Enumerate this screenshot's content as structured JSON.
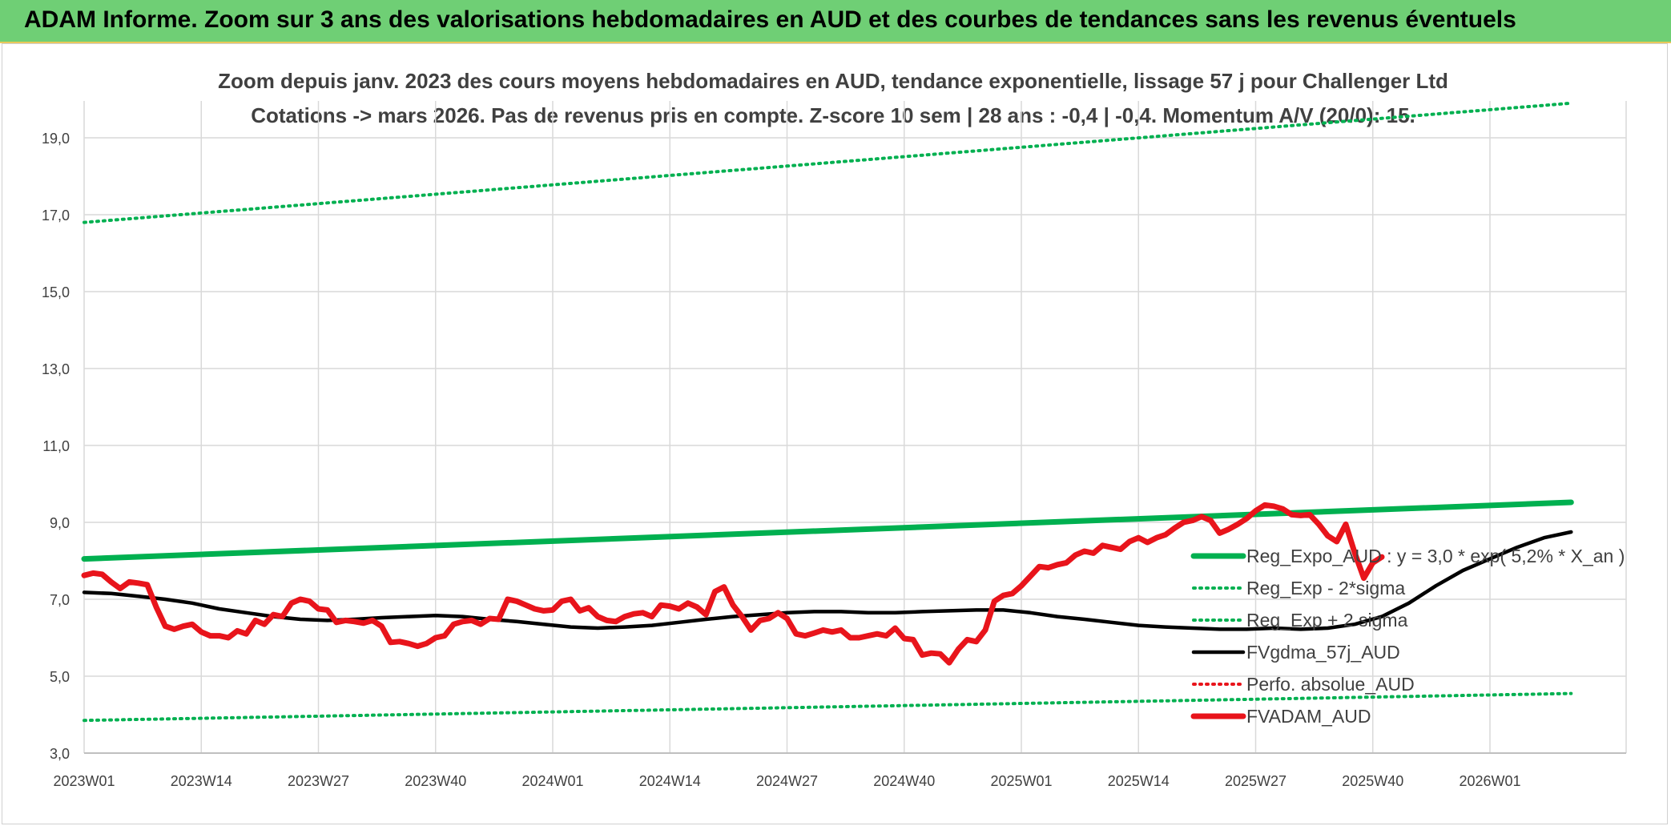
{
  "header": {
    "title": "ADAM Informe. Zoom sur 3 ans des valorisations hebdomadaires en AUD et des courbes de tendances sans les revenus éventuels"
  },
  "colors": {
    "header_bg": "#6fcf75",
    "reg_exp": "#00b050",
    "fvgdma": "#000000",
    "fvadam": "#e8141b",
    "perfo": "#e8141b",
    "grid": "#d9d9d9"
  },
  "chart_data": {
    "type": "line",
    "title": "Zoom depuis janv. 2023 des cours moyens hebdomadaires en AUD, tendance exponentielle, lissage 57 j pour Challenger Ltd",
    "subtitle": "Cotations -> mars 2026. Pas de revenus pris en compte. Z-score 10 sem | 28 ans : -0,4 | -0,4. Momentum A/V (20/0): 15.",
    "ylim": [
      3,
      20
    ],
    "yticks": [
      "3,0",
      "5,0",
      "7,0",
      "9,0",
      "11,0",
      "13,0",
      "15,0",
      "17,0",
      "19,0"
    ],
    "x_categories": [
      "2023W01",
      "2023W14",
      "2023W27",
      "2023W40",
      "2024W01",
      "2024W14",
      "2024W27",
      "2024W40",
      "2025W01",
      "2025W14",
      "2025W27",
      "2025W40",
      "2026W01"
    ],
    "legend_position": "bottom-right",
    "grid": true,
    "series": [
      {
        "name": "Reg_Expo_AUD : y = 3,0 * exp( 5,2% *  X_an )",
        "style": "solid-thick",
        "color": "#00b050",
        "values": [
          [
            0,
            8.05
          ],
          [
            165,
            9.52
          ]
        ]
      },
      {
        "name": "Reg_Exp - 2*sigma",
        "style": "dotted",
        "color": "#00b050",
        "values": [
          [
            0,
            3.85
          ],
          [
            165,
            4.55
          ]
        ]
      },
      {
        "name": "Reg_Exp + 2 sigma",
        "style": "dotted",
        "color": "#00b050",
        "values": [
          [
            0,
            16.8
          ],
          [
            165,
            19.9
          ]
        ]
      },
      {
        "name": "FVgdma_57j_AUD",
        "style": "solid",
        "color": "#000000",
        "values": [
          [
            0,
            7.18
          ],
          [
            3,
            7.15
          ],
          [
            6,
            7.08
          ],
          [
            9,
            7.0
          ],
          [
            12,
            6.9
          ],
          [
            15,
            6.75
          ],
          [
            18,
            6.65
          ],
          [
            21,
            6.55
          ],
          [
            24,
            6.48
          ],
          [
            27,
            6.45
          ],
          [
            30,
            6.48
          ],
          [
            33,
            6.52
          ],
          [
            36,
            6.55
          ],
          [
            39,
            6.58
          ],
          [
            42,
            6.55
          ],
          [
            45,
            6.48
          ],
          [
            48,
            6.42
          ],
          [
            51,
            6.35
          ],
          [
            54,
            6.28
          ],
          [
            57,
            6.25
          ],
          [
            60,
            6.28
          ],
          [
            63,
            6.32
          ],
          [
            66,
            6.4
          ],
          [
            69,
            6.48
          ],
          [
            72,
            6.55
          ],
          [
            75,
            6.6
          ],
          [
            78,
            6.65
          ],
          [
            81,
            6.68
          ],
          [
            84,
            6.68
          ],
          [
            87,
            6.65
          ],
          [
            90,
            6.65
          ],
          [
            93,
            6.68
          ],
          [
            96,
            6.7
          ],
          [
            99,
            6.72
          ],
          [
            102,
            6.72
          ],
          [
            105,
            6.65
          ],
          [
            108,
            6.55
          ],
          [
            111,
            6.48
          ],
          [
            114,
            6.4
          ],
          [
            117,
            6.32
          ],
          [
            120,
            6.28
          ],
          [
            123,
            6.25
          ],
          [
            126,
            6.22
          ],
          [
            129,
            6.22
          ],
          [
            132,
            6.25
          ],
          [
            135,
            6.22
          ],
          [
            138,
            6.25
          ],
          [
            141,
            6.35
          ],
          [
            144,
            6.55
          ],
          [
            147,
            6.9
          ],
          [
            150,
            7.35
          ],
          [
            153,
            7.75
          ],
          [
            156,
            8.05
          ],
          [
            159,
            8.35
          ],
          [
            162,
            8.6
          ],
          [
            165,
            8.75
          ]
        ]
      },
      {
        "name": "Perfo. absolue_AUD",
        "style": "dotted",
        "color": "#e8141b",
        "values": []
      },
      {
        "name": "FVADAM_AUD",
        "style": "solid-thick",
        "color": "#e8141b",
        "values": [
          [
            0,
            7.62
          ],
          [
            1,
            7.68
          ],
          [
            2,
            7.65
          ],
          [
            3,
            7.45
          ],
          [
            4,
            7.28
          ],
          [
            5,
            7.45
          ],
          [
            6,
            7.42
          ],
          [
            7,
            7.38
          ],
          [
            8,
            6.8
          ],
          [
            9,
            6.3
          ],
          [
            10,
            6.22
          ],
          [
            11,
            6.3
          ],
          [
            12,
            6.35
          ],
          [
            13,
            6.15
          ],
          [
            14,
            6.05
          ],
          [
            15,
            6.05
          ],
          [
            16,
            6.0
          ],
          [
            17,
            6.18
          ],
          [
            18,
            6.1
          ],
          [
            19,
            6.45
          ],
          [
            20,
            6.35
          ],
          [
            21,
            6.6
          ],
          [
            22,
            6.55
          ],
          [
            23,
            6.9
          ],
          [
            24,
            7.0
          ],
          [
            25,
            6.95
          ],
          [
            26,
            6.75
          ],
          [
            27,
            6.72
          ],
          [
            28,
            6.4
          ],
          [
            29,
            6.45
          ],
          [
            30,
            6.42
          ],
          [
            31,
            6.38
          ],
          [
            32,
            6.45
          ],
          [
            33,
            6.3
          ],
          [
            34,
            5.88
          ],
          [
            35,
            5.9
          ],
          [
            36,
            5.85
          ],
          [
            37,
            5.78
          ],
          [
            38,
            5.85
          ],
          [
            39,
            6.0
          ],
          [
            40,
            6.05
          ],
          [
            41,
            6.35
          ],
          [
            42,
            6.42
          ],
          [
            43,
            6.45
          ],
          [
            44,
            6.35
          ],
          [
            45,
            6.5
          ],
          [
            46,
            6.48
          ],
          [
            47,
            7.0
          ],
          [
            48,
            6.95
          ],
          [
            49,
            6.85
          ],
          [
            50,
            6.75
          ],
          [
            51,
            6.7
          ],
          [
            52,
            6.72
          ],
          [
            53,
            6.95
          ],
          [
            54,
            7.0
          ],
          [
            55,
            6.7
          ],
          [
            56,
            6.78
          ],
          [
            57,
            6.55
          ],
          [
            58,
            6.45
          ],
          [
            59,
            6.42
          ],
          [
            60,
            6.55
          ],
          [
            61,
            6.62
          ],
          [
            62,
            6.65
          ],
          [
            63,
            6.55
          ],
          [
            64,
            6.85
          ],
          [
            65,
            6.82
          ],
          [
            66,
            6.75
          ],
          [
            67,
            6.9
          ],
          [
            68,
            6.8
          ],
          [
            69,
            6.6
          ],
          [
            70,
            7.2
          ],
          [
            71,
            7.32
          ],
          [
            72,
            6.85
          ],
          [
            73,
            6.55
          ],
          [
            74,
            6.2
          ],
          [
            75,
            6.45
          ],
          [
            76,
            6.5
          ],
          [
            77,
            6.65
          ],
          [
            78,
            6.5
          ],
          [
            79,
            6.1
          ],
          [
            80,
            6.05
          ],
          [
            81,
            6.12
          ],
          [
            82,
            6.2
          ],
          [
            83,
            6.15
          ],
          [
            84,
            6.2
          ],
          [
            85,
            6.0
          ],
          [
            86,
            6.0
          ],
          [
            87,
            6.05
          ],
          [
            88,
            6.1
          ],
          [
            89,
            6.05
          ],
          [
            90,
            6.25
          ],
          [
            91,
            5.98
          ],
          [
            92,
            5.95
          ],
          [
            93,
            5.55
          ],
          [
            94,
            5.6
          ],
          [
            95,
            5.58
          ],
          [
            96,
            5.35
          ],
          [
            97,
            5.7
          ],
          [
            98,
            5.95
          ],
          [
            99,
            5.9
          ],
          [
            100,
            6.2
          ],
          [
            101,
            6.95
          ],
          [
            102,
            7.1
          ],
          [
            103,
            7.15
          ],
          [
            104,
            7.35
          ],
          [
            105,
            7.6
          ],
          [
            106,
            7.85
          ],
          [
            107,
            7.82
          ],
          [
            108,
            7.9
          ],
          [
            109,
            7.95
          ],
          [
            110,
            8.15
          ],
          [
            111,
            8.25
          ],
          [
            112,
            8.2
          ],
          [
            113,
            8.4
          ],
          [
            114,
            8.35
          ],
          [
            115,
            8.3
          ],
          [
            116,
            8.5
          ],
          [
            117,
            8.6
          ],
          [
            118,
            8.48
          ],
          [
            119,
            8.6
          ],
          [
            120,
            8.68
          ],
          [
            121,
            8.85
          ],
          [
            122,
            9.0
          ],
          [
            123,
            9.05
          ],
          [
            124,
            9.15
          ],
          [
            125,
            9.05
          ],
          [
            126,
            8.72
          ],
          [
            127,
            8.82
          ],
          [
            128,
            8.95
          ],
          [
            129,
            9.1
          ],
          [
            130,
            9.3
          ],
          [
            131,
            9.45
          ],
          [
            132,
            9.42
          ],
          [
            133,
            9.35
          ],
          [
            134,
            9.2
          ],
          [
            135,
            9.18
          ],
          [
            136,
            9.2
          ],
          [
            137,
            8.95
          ],
          [
            138,
            8.65
          ],
          [
            139,
            8.5
          ],
          [
            140,
            8.95
          ],
          [
            141,
            8.2
          ],
          [
            142,
            7.55
          ],
          [
            143,
            7.95
          ],
          [
            144,
            8.1
          ]
        ]
      }
    ]
  }
}
